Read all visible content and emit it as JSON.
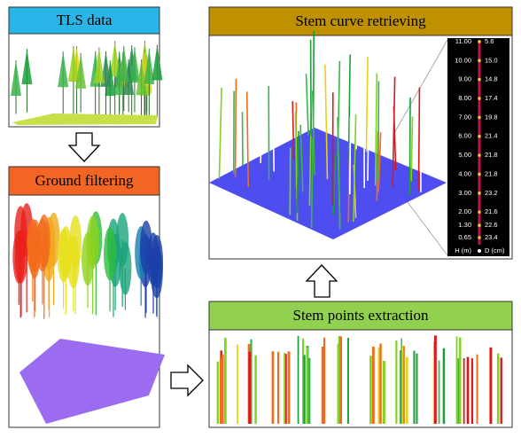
{
  "panels": {
    "tls": {
      "title": "TLS data"
    },
    "ground": {
      "title": "Ground filtering"
    },
    "stem_curve": {
      "title": "Stem curve retrieving"
    },
    "stem_points": {
      "title": "Stem points extraction"
    }
  },
  "stem_table": {
    "h_label": "H (m)",
    "d_label": "D (cm)",
    "rows": [
      [
        "11.00",
        "5.6"
      ],
      [
        "10.00",
        "15.0"
      ],
      [
        "9.00",
        "14.8"
      ],
      [
        "8.00",
        "17.4"
      ],
      [
        "7.00",
        "19.8"
      ],
      [
        "6.00",
        "21.4"
      ],
      [
        "5.00",
        "21.8"
      ],
      [
        "4.00",
        "21.8"
      ],
      [
        "3.00",
        "23.2"
      ],
      [
        "2.00",
        "21.6"
      ],
      [
        "1.30",
        "22.6"
      ],
      [
        "0.65",
        "23.4"
      ]
    ]
  }
}
